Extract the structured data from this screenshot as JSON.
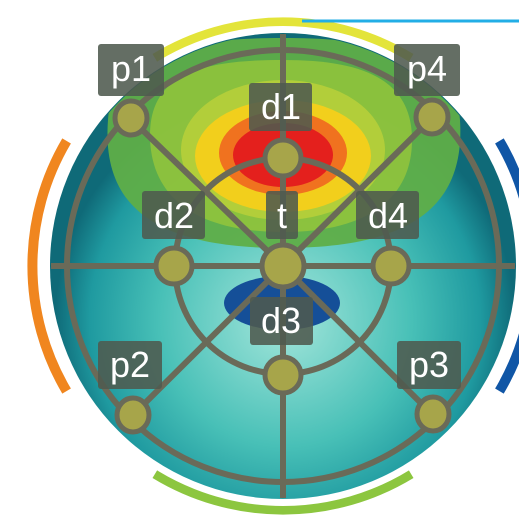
{
  "labels": {
    "p1": "p1",
    "p2": "p2",
    "p3": "p3",
    "p4": "p4",
    "d1": "d1",
    "d2": "d2",
    "d3": "d3",
    "d4": "d4",
    "t": "t"
  },
  "colors": {
    "rim_top": "#e3e43a",
    "rim_left": "#f0861f",
    "rim_right": "#1056a6",
    "rim_bottom": "#8cc63f",
    "accent_line": "#22aee6",
    "disc_center": "#9fe3d8",
    "disc_edge": "#126f7c",
    "heat_outer": "#5fae48",
    "heat_mid": "#9bc83a",
    "heat_yellow": "#f2cf1c",
    "heat_orange": "#f0721f",
    "heat_red": "#e4201d",
    "blue_blob": "#154f98",
    "grid_line": "#6a6a58",
    "node_fill": "#a7a54a",
    "label_box": "#4f5a4f",
    "label_text": "#ffffff"
  }
}
